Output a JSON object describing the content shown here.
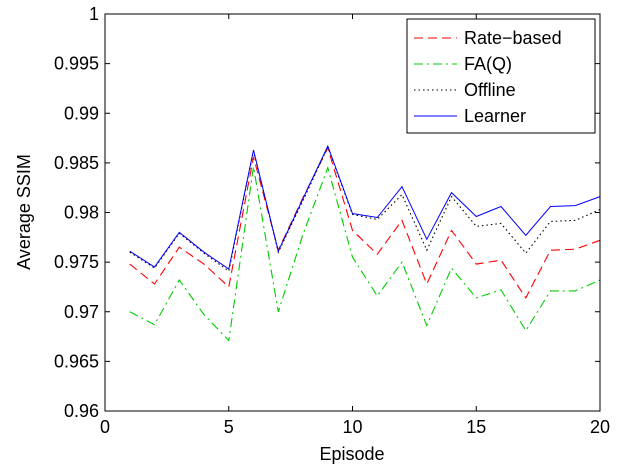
{
  "chart_data": {
    "type": "line",
    "xlabel": "Episode",
    "ylabel": "Average SSIM",
    "xlim": [
      0,
      20
    ],
    "ylim": [
      0.96,
      1
    ],
    "xticks": [
      0,
      5,
      10,
      15,
      20
    ],
    "xtick_labels": [
      "0",
      "5",
      "10",
      "15",
      "20"
    ],
    "yticks": [
      0.96,
      0.965,
      0.97,
      0.975,
      0.98,
      0.985,
      0.99,
      0.995,
      1
    ],
    "ytick_labels": [
      "0.96",
      "0.965",
      "0.97",
      "0.975",
      "0.98",
      "0.985",
      "0.99",
      "0.995",
      "1"
    ],
    "legend_position": "top-right",
    "grid": false,
    "x": [
      1,
      2,
      3,
      4,
      5,
      6,
      7,
      8,
      9,
      10,
      11,
      12,
      13,
      14,
      15,
      16,
      17,
      18,
      19,
      20
    ],
    "series": [
      {
        "name": "Rate−based",
        "color": "#ff0000",
        "style": "dashed",
        "values": [
          0.9748,
          0.9728,
          0.9765,
          0.9748,
          0.9725,
          0.9856,
          0.9762,
          0.9815,
          0.9865,
          0.9782,
          0.9758,
          0.9792,
          0.9728,
          0.9782,
          0.9748,
          0.9752,
          0.9714,
          0.9762,
          0.9763,
          0.9772
        ]
      },
      {
        "name": "FA(Q)",
        "color": "#00cc00",
        "style": "dashdot",
        "values": [
          0.97,
          0.9687,
          0.9732,
          0.9697,
          0.9671,
          0.9846,
          0.97,
          0.9778,
          0.9845,
          0.9755,
          0.9716,
          0.975,
          0.9686,
          0.9744,
          0.9714,
          0.9722,
          0.9681,
          0.9721,
          0.9721,
          0.9732
        ]
      },
      {
        "name": "Offline",
        "color": "#000000",
        "style": "dotted",
        "values": [
          0.976,
          0.9744,
          0.9779,
          0.9759,
          0.9741,
          0.9862,
          0.976,
          0.9812,
          0.9866,
          0.9798,
          0.9793,
          0.9818,
          0.9762,
          0.9816,
          0.9786,
          0.9789,
          0.9759,
          0.9791,
          0.9792,
          0.9803
        ]
      },
      {
        "name": "Learner",
        "color": "#0000ff",
        "style": "solid",
        "values": [
          0.9761,
          0.9745,
          0.978,
          0.976,
          0.9743,
          0.9863,
          0.9761,
          0.9814,
          0.9867,
          0.9799,
          0.9795,
          0.9826,
          0.9773,
          0.982,
          0.9796,
          0.9806,
          0.9777,
          0.9806,
          0.9807,
          0.9816
        ]
      }
    ]
  }
}
